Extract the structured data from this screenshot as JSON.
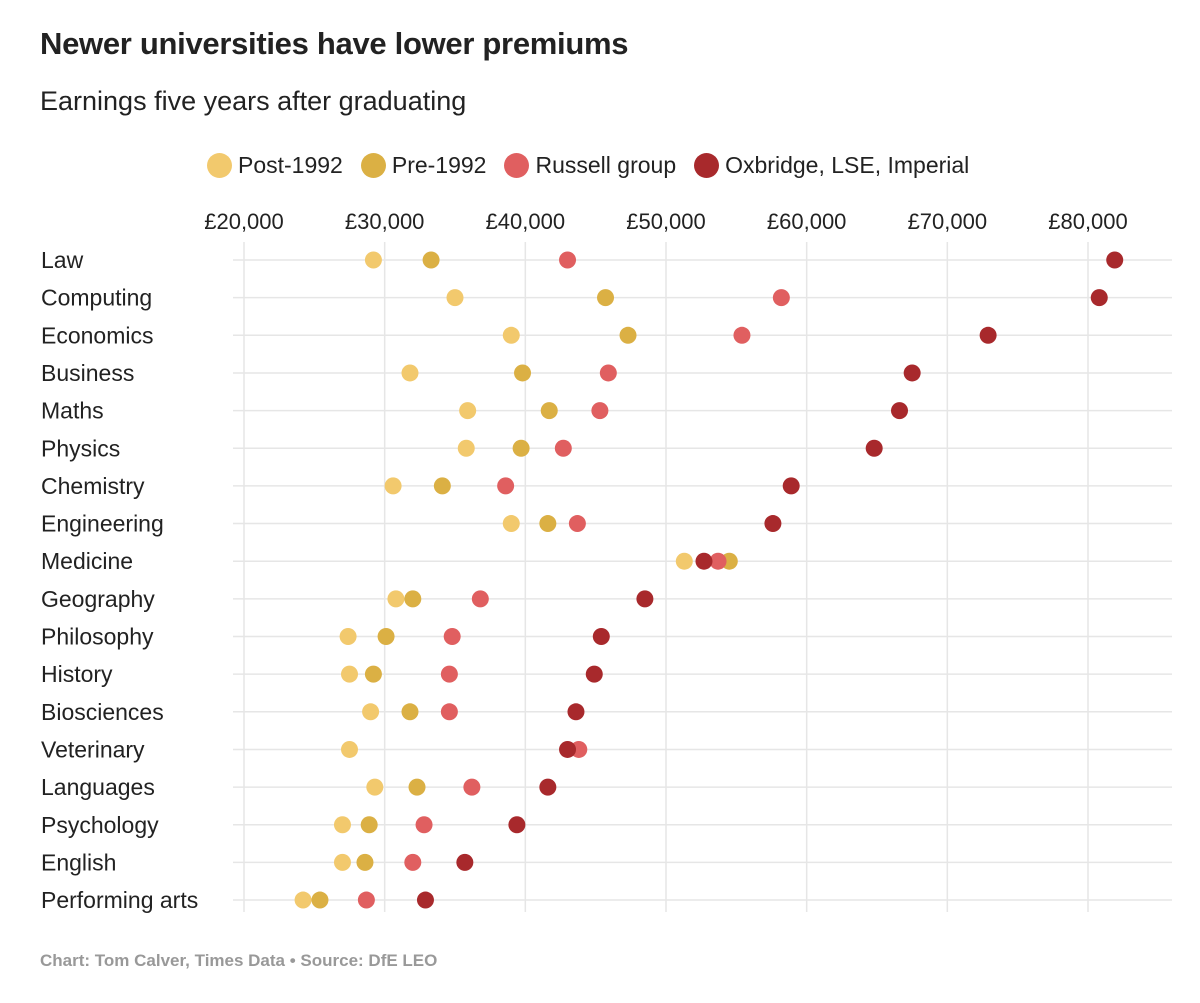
{
  "chart_data": {
    "type": "scatter",
    "title": "Newer universities have lower premiums",
    "subtitle": "Earnings five years after graduating",
    "xlabel": "",
    "ylabel": "",
    "xlim": [
      19000,
      85000
    ],
    "x_ticks": [
      20000,
      30000,
      40000,
      50000,
      60000,
      70000,
      80000
    ],
    "x_tick_labels": [
      "£20,000",
      "£30,000",
      "£40,000",
      "£50,000",
      "£60,000",
      "£70,000",
      "£80,000"
    ],
    "grid": true,
    "legend_position": "top",
    "categories": [
      "Law",
      "Computing",
      "Economics",
      "Business",
      "Maths",
      "Physics",
      "Chemistry",
      "Engineering",
      "Medicine",
      "Geography",
      "Philosophy",
      "History",
      "Biosciences",
      "Veterinary",
      "Languages",
      "Psychology",
      "English",
      "Performing arts"
    ],
    "series": [
      {
        "name": "Post-1992",
        "color": "#f2c96d",
        "values": [
          29200,
          35000,
          39000,
          31800,
          35900,
          35800,
          30600,
          39000,
          51300,
          30800,
          27400,
          27500,
          29000,
          27500,
          29300,
          27000,
          27000,
          24200
        ]
      },
      {
        "name": "Pre-1992",
        "color": "#dbb044",
        "values": [
          33300,
          45700,
          47300,
          39800,
          41700,
          39700,
          34100,
          41600,
          54500,
          32000,
          30100,
          29200,
          31800,
          null,
          32300,
          28900,
          28600,
          25400
        ]
      },
      {
        "name": "Russell group",
        "color": "#e05f60",
        "values": [
          43000,
          58200,
          55400,
          45900,
          45300,
          42700,
          38600,
          43700,
          53700,
          36800,
          34800,
          34600,
          34600,
          43800,
          36200,
          32800,
          32000,
          28700
        ]
      },
      {
        "name": "Oxbridge, LSE, Imperial",
        "color": "#a8292c",
        "values": [
          81900,
          80800,
          72900,
          67500,
          66600,
          64800,
          58900,
          57600,
          52700,
          48500,
          45400,
          44900,
          43600,
          43000,
          41600,
          39400,
          35700,
          32900
        ]
      }
    ]
  },
  "footer": "Chart: Tom Calver, Times Data • Source: DfE LEO"
}
